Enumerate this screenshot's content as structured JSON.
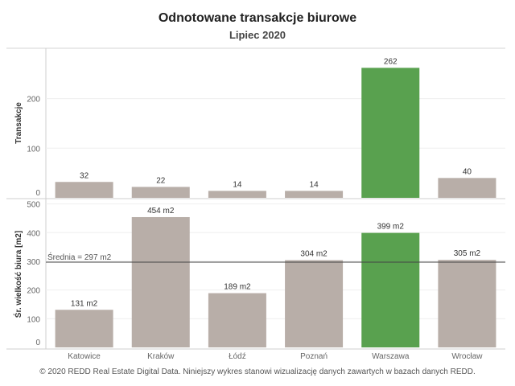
{
  "title": "Odnotowane transakcje biurowe",
  "subtitle": "Lipiec 2020",
  "footer": "© 2020 REDD Real Estate Digital Data. Niniejszy wykres stanowi wizualizację danych zawartych w bazach danych REDD.",
  "chart_data": [
    {
      "type": "bar",
      "categories": [
        "Katowice",
        "Kraków",
        "Łódź",
        "Poznań",
        "Warszawa",
        "Wrocław"
      ],
      "values": [
        32,
        22,
        14,
        14,
        262,
        40
      ],
      "value_labels": [
        "32",
        "22",
        "14",
        "14",
        "262",
        "40"
      ],
      "ylabel": "Transakcje",
      "yticks": [
        0,
        100,
        200
      ],
      "ylim": [
        0,
        295
      ],
      "highlight": "Warszawa"
    },
    {
      "type": "bar",
      "categories": [
        "Katowice",
        "Kraków",
        "Łódź",
        "Poznań",
        "Warszawa",
        "Wrocław"
      ],
      "values": [
        131,
        454,
        189,
        304,
        399,
        305
      ],
      "value_labels": [
        "131 m2",
        "454 m2",
        "189 m2",
        "304 m2",
        "399 m2",
        "305 m2"
      ],
      "ylabel": "Śr. wielkość biura [m2]",
      "yticks": [
        0,
        100,
        200,
        300,
        400,
        500
      ],
      "ylim": [
        0,
        510
      ],
      "reference_line": {
        "value": 297,
        "label": "Średnia = 297 m2"
      },
      "highlight": "Warszawa"
    }
  ],
  "colors": {
    "bar": "#b8aea8",
    "highlight": "#59a14f",
    "reference_line": "#444444"
  }
}
